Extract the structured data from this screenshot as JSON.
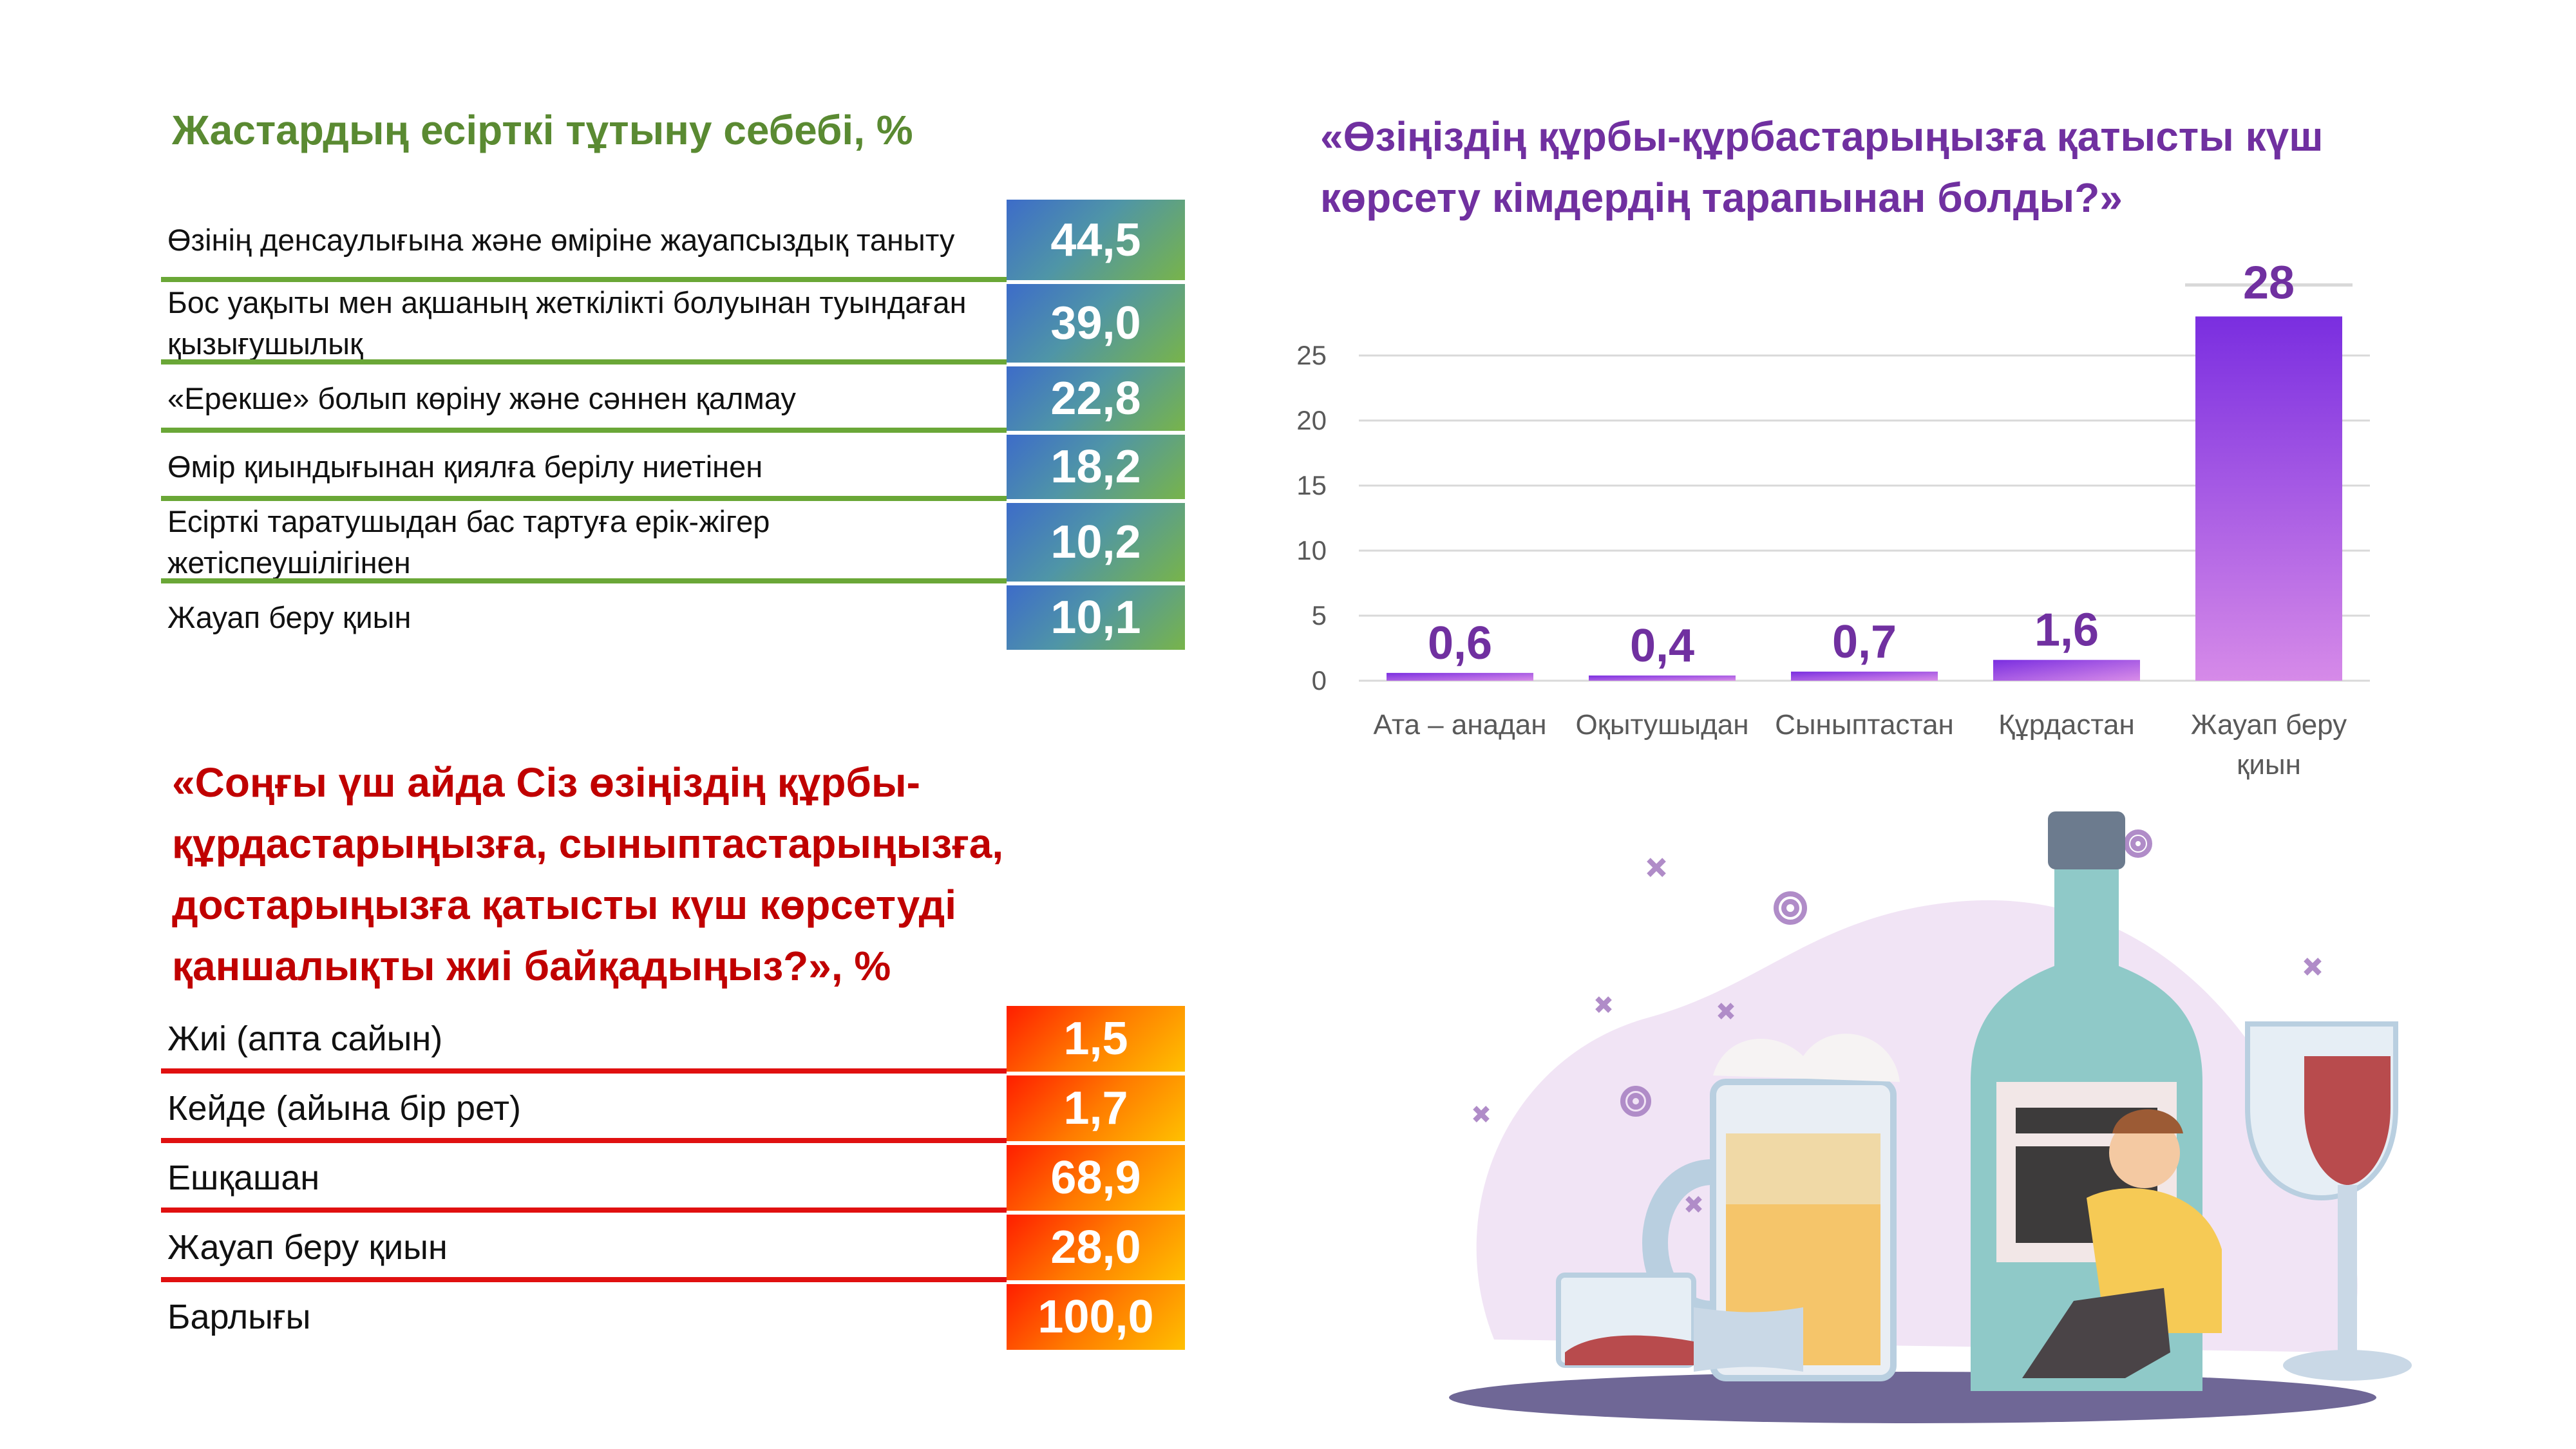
{
  "left_top": {
    "title": "Жастардың есірткі тұтыну себебі, %",
    "rows": [
      {
        "label": "Өзінің денсаулығына және өміріне жауапсыздық таныту",
        "value": "44,5"
      },
      {
        "label": "Бос уақыты мен ақшаның жеткілікті болуынан туындаған қызығушылық",
        "value": "39,0"
      },
      {
        "label": "«Ерекше» болып көріну және сәннен қалмау",
        "value": "22,8"
      },
      {
        "label": "Өмір қиындығынан қиялға берілу ниетінен",
        "value": "18,2"
      },
      {
        "label": "Есірткі таратушыдан  бас тартуға ерік-жігер жетіспеушілігінен",
        "value": "10,2"
      },
      {
        "label": "Жауап беру қиын",
        "value": "10,1"
      }
    ]
  },
  "left_bottom": {
    "title": "«Соңғы үш айда Сіз өзіңіздің құрбы-құрдастарыңызға, сыныптастарыңызға, достарыңызға қатысты күш көрсетуді қаншалықты жиі байқадыңыз?», %",
    "rows": [
      {
        "label": "Жиі (апта сайын)",
        "value": "1,5"
      },
      {
        "label": "Кейде (айына бір рет)",
        "value": "1,7"
      },
      {
        "label": "Ешқашан",
        "value": "68,9"
      },
      {
        "label": "Жауап беру қиын",
        "value": "28,0"
      },
      {
        "label": "Барлығы",
        "value": "100,0"
      }
    ]
  },
  "chart_data": {
    "type": "bar",
    "title": "«Өзіңіздің құрбы-құрбастарыңызға  қатысты күш көрсету кімдердің тарапынан болды?»",
    "categories": [
      "Ата – анадан",
      "Оқытушыдан",
      "Сыныптастан",
      "Құрдастан",
      "Жауап беру қиын"
    ],
    "values": [
      0.6,
      0.4,
      0.7,
      1.6,
      28
    ],
    "data_labels": [
      "0,6",
      "0,4",
      "0,7",
      "1,6",
      "28"
    ],
    "yticks": [
      0,
      5,
      10,
      15,
      20,
      25
    ],
    "ylim": [
      0,
      25
    ],
    "grid": true,
    "xlabel": "",
    "ylabel": "",
    "colors": {
      "bar_top": "#7a2ee0",
      "bar_bottom": "#d68ae8",
      "label": "#7030a0"
    }
  },
  "illustration": {
    "icon": "alcohol-addiction-illustration"
  }
}
